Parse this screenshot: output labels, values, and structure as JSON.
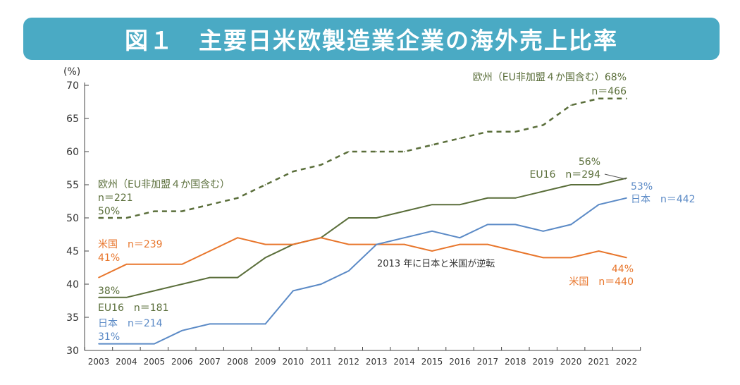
{
  "title": "図１　主要日米欧製造業企業の海外売上比率",
  "chart_data": {
    "type": "line",
    "title": "図１　主要日米欧製造業企業の海外売上比率",
    "ylabel": "(%)",
    "xlabel": "",
    "ylim": [
      30,
      70
    ],
    "yticks": [
      "30",
      "35",
      "40",
      "45",
      "50",
      "55",
      "60",
      "65",
      "70"
    ],
    "x": [
      "2003",
      "2004",
      "2005",
      "2006",
      "2007",
      "2008",
      "2009",
      "2010",
      "2011",
      "2012",
      "2013",
      "2014",
      "2015",
      "2016",
      "2017",
      "2018",
      "2019",
      "2020",
      "2021",
      "2022"
    ],
    "series": [
      {
        "name": "欧州（EU非加盟４か国含む）",
        "color": "#5a6e3a",
        "dashed": true,
        "values": [
          50,
          50,
          51,
          51,
          52,
          53,
          55,
          57,
          58,
          60,
          60,
          60,
          61,
          62,
          63,
          63,
          64,
          67,
          68,
          68
        ]
      },
      {
        "name": "EU16",
        "color": "#5a6e3a",
        "dashed": false,
        "values": [
          38,
          38,
          39,
          40,
          41,
          41,
          44,
          46,
          47,
          50,
          50,
          51,
          52,
          52,
          53,
          53,
          54,
          55,
          55,
          56
        ]
      },
      {
        "name": "米国",
        "color": "#e8762c",
        "dashed": false,
        "values": [
          41,
          43,
          43,
          43,
          45,
          47,
          46,
          46,
          47,
          46,
          46,
          46,
          45,
          46,
          46,
          45,
          44,
          44,
          45,
          44
        ]
      },
      {
        "name": "日本",
        "color": "#5b8ac6",
        "dashed": false,
        "values": [
          31,
          31,
          31,
          33,
          34,
          34,
          34,
          39,
          40,
          42,
          46,
          47,
          48,
          47,
          49,
          49,
          48,
          49,
          52,
          53
        ]
      }
    ],
    "annotations": {
      "eu_start_name": "欧州（EU非加盟４か国含む）",
      "eu_start_n": "n＝221",
      "eu_start_pct": "50%",
      "eu_end": "欧州（EU非加盟４か国含む）68%",
      "eu_end_n": "n＝466",
      "us_start": "米国　n＝239",
      "us_start_pct": "41%",
      "eu16_start_pct": "38%",
      "eu16_start": "EU16　n＝181",
      "jp_start": "日本　n＝214",
      "jp_start_pct": "31%",
      "eu16_end_pct": "56%",
      "eu16_end": "EU16　n＝294",
      "jp_end_pct": "53%",
      "jp_end": "日本　n＝442",
      "us_end_pct": "44%",
      "us_end": "米国　n＝440",
      "crossover": "2013 年に日本と米国が逆転"
    },
    "grid": false,
    "legend": "inline labels"
  }
}
